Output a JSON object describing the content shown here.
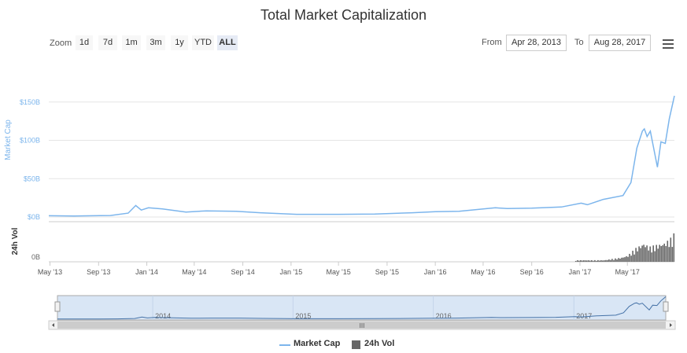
{
  "title": "Total Market Capitalization",
  "toolbar": {
    "zoom_label": "Zoom",
    "zoom_buttons": [
      "1d",
      "7d",
      "1m",
      "3m",
      "1y",
      "YTD",
      "ALL"
    ],
    "active_zoom": "ALL",
    "from_label": "From",
    "from_value": "Apr 28, 2013",
    "to_label": "To",
    "to_value": "Aug 28, 2017",
    "menu_icon": "hamburger-menu-icon"
  },
  "colors": {
    "market_cap": "#7cb5ec",
    "volume": "#666666",
    "navigator_fill": "#d9e6f5"
  },
  "chart_data": {
    "type": "line",
    "title": "Total Market Capitalization",
    "x_tick_labels": [
      "May '13",
      "Sep '13",
      "Jan '14",
      "May '14",
      "Sep '14",
      "Jan '15",
      "May '15",
      "Sep '15",
      "Jan '16",
      "May '16",
      "Sep '16",
      "Jan '17",
      "May '17"
    ],
    "x_range": [
      "2013-04-28",
      "2017-08-28"
    ],
    "y_axis_market": {
      "label": "Market Cap",
      "ticks": [
        "$0B",
        "$50B",
        "$100B",
        "$150B"
      ],
      "tick_values": [
        0,
        50,
        100,
        150
      ],
      "ylim": [
        0,
        160
      ]
    },
    "y_axis_volume": {
      "label": "24h Vol",
      "ticks": [
        "0B"
      ]
    },
    "series": [
      {
        "name": "Market Cap",
        "unit": "$B",
        "points": [
          [
            "2013-04-28",
            1.6
          ],
          [
            "2013-07-01",
            1.2
          ],
          [
            "2013-10-01",
            2.0
          ],
          [
            "2013-11-15",
            5.0
          ],
          [
            "2013-12-04",
            15.0
          ],
          [
            "2013-12-18",
            9.0
          ],
          [
            "2014-01-05",
            12.0
          ],
          [
            "2014-02-10",
            10.5
          ],
          [
            "2014-04-10",
            6.5
          ],
          [
            "2014-06-01",
            8.0
          ],
          [
            "2014-08-15",
            7.5
          ],
          [
            "2014-10-15",
            5.5
          ],
          [
            "2015-01-15",
            3.5
          ],
          [
            "2015-05-01",
            3.5
          ],
          [
            "2015-08-01",
            3.8
          ],
          [
            "2015-11-04",
            5.5
          ],
          [
            "2016-01-01",
            7.0
          ],
          [
            "2016-03-01",
            7.5
          ],
          [
            "2016-06-01",
            12.0
          ],
          [
            "2016-07-01",
            11.0
          ],
          [
            "2016-09-01",
            11.5
          ],
          [
            "2016-11-15",
            13.0
          ],
          [
            "2017-01-04",
            18.0
          ],
          [
            "2017-01-20",
            16.0
          ],
          [
            "2017-03-01",
            23.0
          ],
          [
            "2017-04-20",
            28.0
          ],
          [
            "2017-05-10",
            45.0
          ],
          [
            "2017-05-25",
            90.0
          ],
          [
            "2017-06-08",
            112.0
          ],
          [
            "2017-06-13",
            115.0
          ],
          [
            "2017-06-20",
            105.0
          ],
          [
            "2017-06-28",
            112.0
          ],
          [
            "2017-07-16",
            65.0
          ],
          [
            "2017-07-25",
            98.0
          ],
          [
            "2017-08-05",
            96.0
          ],
          [
            "2017-08-15",
            128.0
          ],
          [
            "2017-08-28",
            158.0
          ]
        ]
      },
      {
        "name": "24h Vol",
        "unit": "$B",
        "points": [
          [
            "2013-04-28",
            0.1
          ],
          [
            "2017-03-01",
            0.3
          ],
          [
            "2017-04-15",
            0.8
          ],
          [
            "2017-05-01",
            1.2
          ],
          [
            "2017-05-20",
            2.5
          ],
          [
            "2017-06-10",
            3.5
          ],
          [
            "2017-06-25",
            2.8
          ],
          [
            "2017-07-15",
            3.2
          ],
          [
            "2017-08-01",
            3.6
          ],
          [
            "2017-08-15",
            4.2
          ],
          [
            "2017-08-28",
            5.5
          ]
        ]
      }
    ],
    "navigator": {
      "year_labels": [
        "2014",
        "2015",
        "2016",
        "2017"
      ],
      "scrollbar_grip": "III"
    },
    "legend": {
      "placement": "bottom-center",
      "items": [
        "Market Cap",
        "24h Vol"
      ]
    }
  }
}
